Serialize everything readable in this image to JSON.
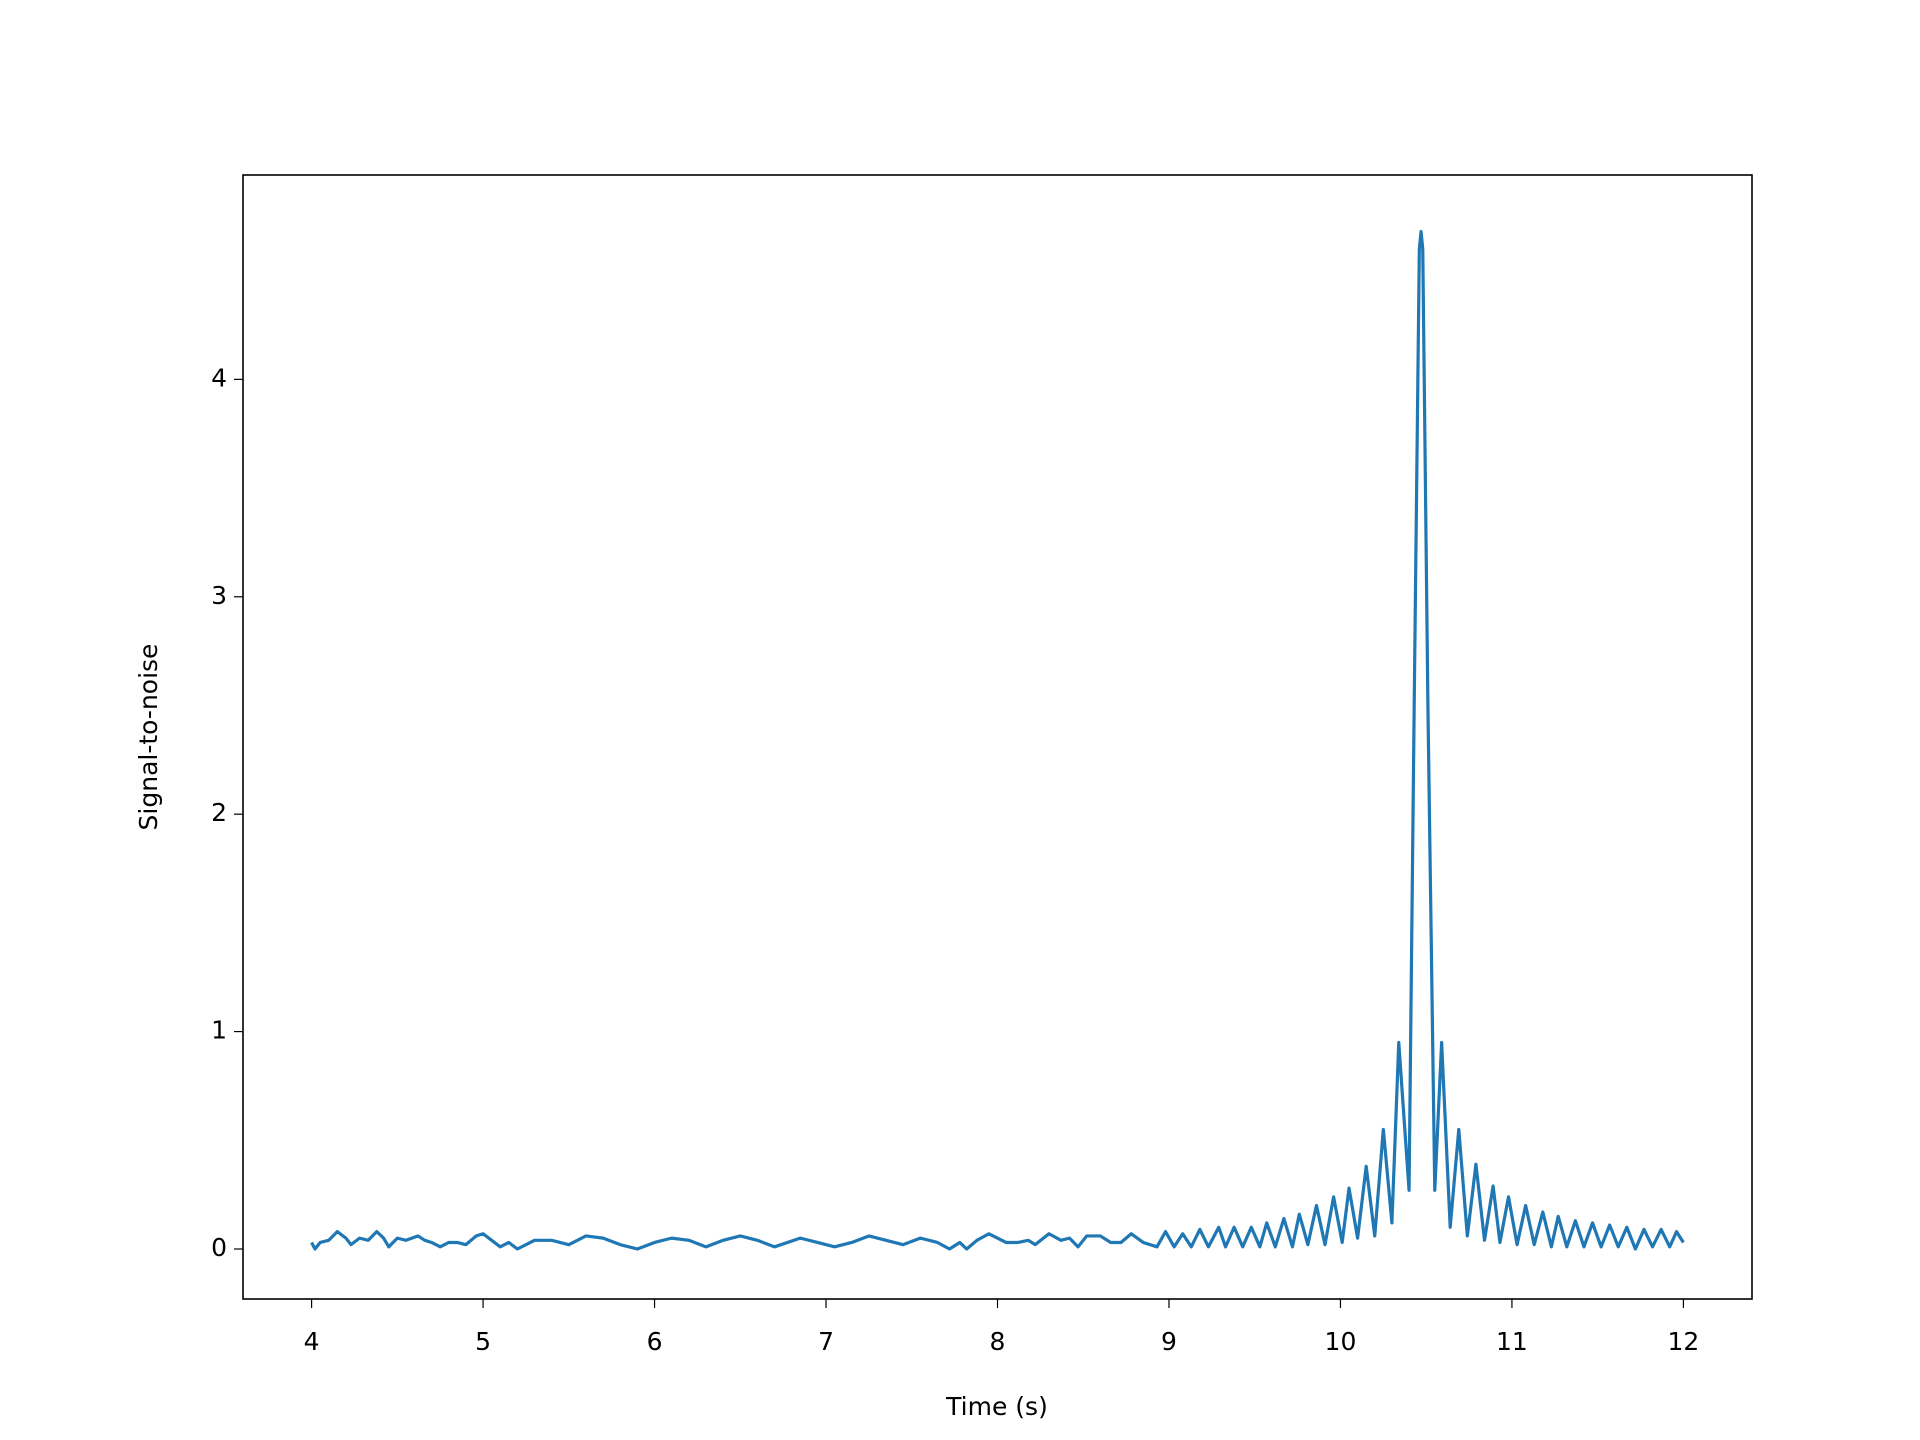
{
  "chart_data": {
    "type": "line",
    "x_label": "Time (s)",
    "y_label": "Signal-to-noise",
    "x": [
      4.0,
      4.02,
      4.05,
      4.1,
      4.15,
      4.2,
      4.23,
      4.28,
      4.33,
      4.38,
      4.42,
      4.45,
      4.5,
      4.55,
      4.62,
      4.66,
      4.7,
      4.75,
      4.8,
      4.85,
      4.9,
      4.96,
      5.0,
      5.05,
      5.1,
      5.15,
      5.2,
      5.25,
      5.3,
      5.4,
      5.5,
      5.6,
      5.7,
      5.8,
      5.9,
      6.0,
      6.1,
      6.2,
      6.3,
      6.4,
      6.5,
      6.6,
      6.7,
      6.85,
      6.95,
      7.05,
      7.15,
      7.25,
      7.35,
      7.45,
      7.55,
      7.65,
      7.72,
      7.78,
      7.82,
      7.88,
      7.95,
      8.05,
      8.12,
      8.18,
      8.22,
      8.3,
      8.37,
      8.42,
      8.47,
      8.52,
      8.6,
      8.66,
      8.72,
      8.78,
      8.85,
      8.93,
      8.98,
      9.03,
      9.08,
      9.13,
      9.18,
      9.23,
      9.29,
      9.33,
      9.38,
      9.43,
      9.48,
      9.53,
      9.57,
      9.62,
      9.67,
      9.72,
      9.76,
      9.81,
      9.86,
      9.91,
      9.96,
      10.01,
      10.05,
      10.1,
      10.15,
      10.2,
      10.25,
      10.3,
      10.34,
      10.4,
      10.43,
      10.46,
      10.47,
      10.48,
      10.51,
      10.55,
      10.59,
      10.64,
      10.69,
      10.74,
      10.79,
      10.84,
      10.89,
      10.93,
      10.98,
      11.03,
      11.08,
      11.13,
      11.18,
      11.23,
      11.27,
      11.32,
      11.37,
      11.42,
      11.47,
      11.52,
      11.57,
      11.62,
      11.67,
      11.72,
      11.77,
      11.82,
      11.87,
      11.92,
      11.96,
      12.0
    ],
    "values": [
      0.03,
      0.0,
      0.03,
      0.04,
      0.08,
      0.05,
      0.02,
      0.05,
      0.04,
      0.08,
      0.05,
      0.01,
      0.05,
      0.04,
      0.06,
      0.04,
      0.03,
      0.01,
      0.03,
      0.03,
      0.02,
      0.06,
      0.07,
      0.04,
      0.01,
      0.03,
      0.0,
      0.02,
      0.04,
      0.04,
      0.02,
      0.06,
      0.05,
      0.02,
      0.0,
      0.03,
      0.05,
      0.04,
      0.01,
      0.04,
      0.06,
      0.04,
      0.01,
      0.05,
      0.03,
      0.01,
      0.03,
      0.06,
      0.04,
      0.02,
      0.05,
      0.03,
      0.0,
      0.03,
      0.0,
      0.04,
      0.07,
      0.03,
      0.03,
      0.04,
      0.02,
      0.07,
      0.04,
      0.05,
      0.01,
      0.06,
      0.06,
      0.03,
      0.03,
      0.07,
      0.03,
      0.01,
      0.08,
      0.01,
      0.07,
      0.01,
      0.09,
      0.01,
      0.1,
      0.01,
      0.1,
      0.01,
      0.1,
      0.01,
      0.12,
      0.01,
      0.14,
      0.01,
      0.16,
      0.02,
      0.2,
      0.02,
      0.24,
      0.03,
      0.28,
      0.05,
      0.38,
      0.06,
      0.55,
      0.12,
      0.95,
      0.27,
      2.5,
      4.6,
      4.68,
      4.6,
      2.5,
      0.27,
      0.95,
      0.1,
      0.55,
      0.06,
      0.39,
      0.04,
      0.29,
      0.03,
      0.24,
      0.02,
      0.2,
      0.02,
      0.17,
      0.01,
      0.15,
      0.01,
      0.13,
      0.01,
      0.12,
      0.01,
      0.11,
      0.01,
      0.1,
      0.0,
      0.09,
      0.01,
      0.09,
      0.01,
      0.08,
      0.03
    ],
    "color": "#1f77b4",
    "xlim": [
      3.6,
      12.4
    ],
    "xticks": [
      4,
      5,
      6,
      7,
      8,
      9,
      10,
      11,
      12
    ],
    "ylim": [
      -0.23,
      4.94
    ],
    "yticks": [
      0,
      1,
      2,
      3,
      4
    ],
    "grid": false
  }
}
